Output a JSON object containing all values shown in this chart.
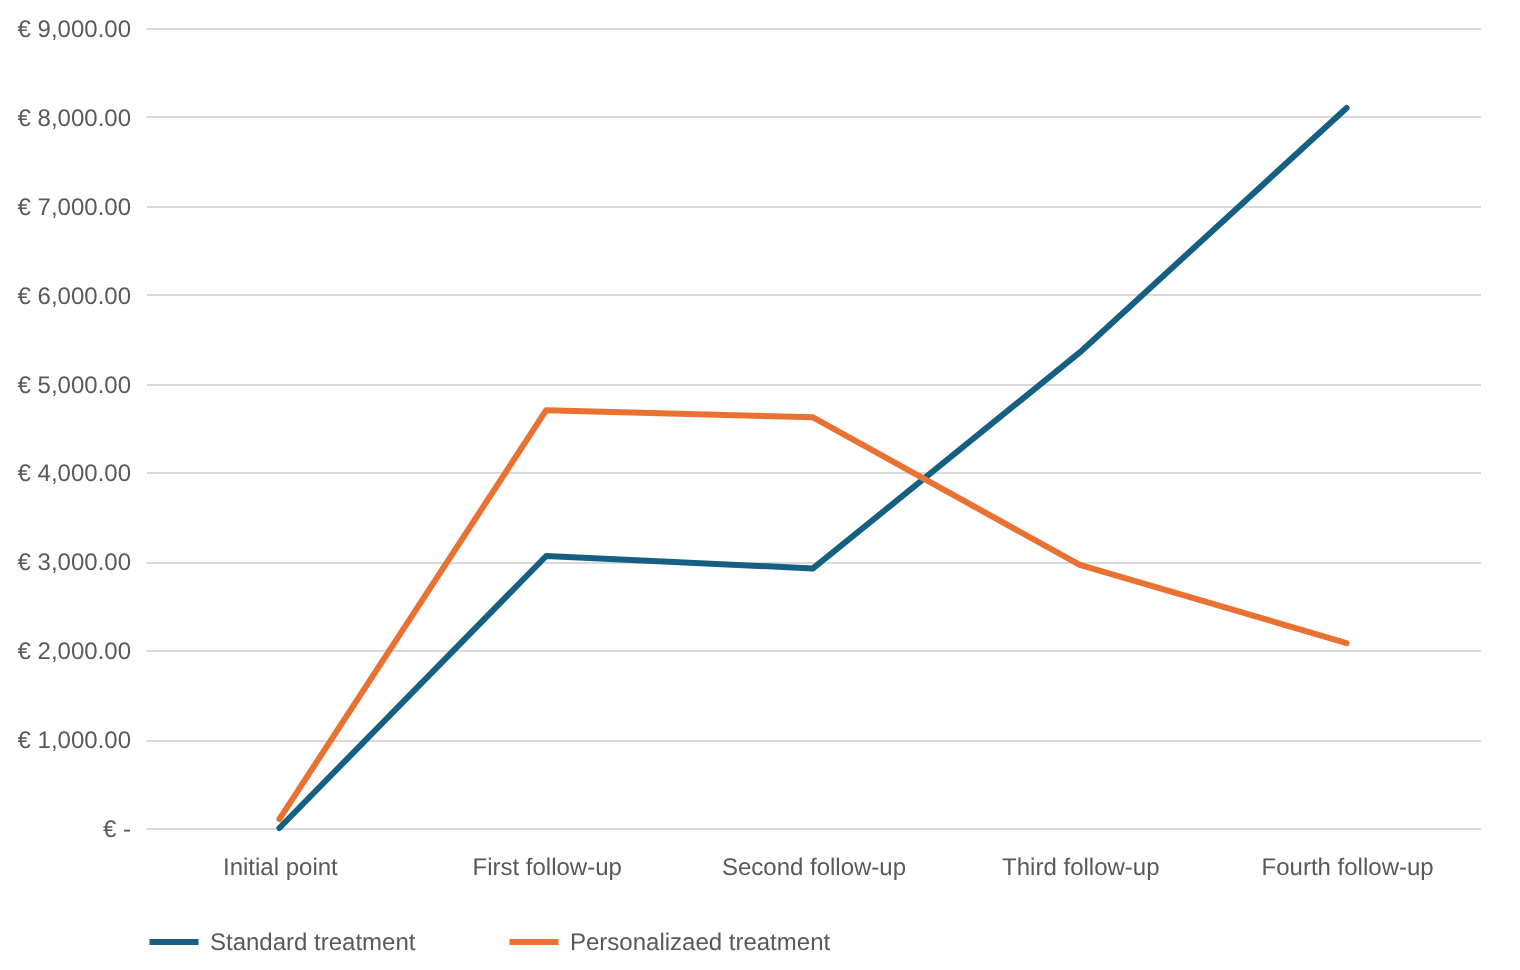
{
  "chart_data": {
    "type": "line",
    "categories": [
      "Initial point",
      "First follow-up",
      "Second follow-up",
      "Third follow-up",
      "Fourth follow-up"
    ],
    "series": [
      {
        "name": "Standard treatment",
        "color": "#156082",
        "values": [
          0,
          3060,
          2920,
          5350,
          8100
        ]
      },
      {
        "name": "Personalizaed treatment",
        "color": "#e97132",
        "values": [
          100,
          4700,
          4620,
          2960,
          2080
        ]
      }
    ],
    "ylim": [
      0,
      9000
    ],
    "yticks": [
      {
        "value": 0,
        "label": "€ -"
      },
      {
        "value": 1000,
        "label": "€ 1,000.00"
      },
      {
        "value": 2000,
        "label": "€ 2,000.00"
      },
      {
        "value": 3000,
        "label": "€ 3,000.00"
      },
      {
        "value": 4000,
        "label": "€ 4,000.00"
      },
      {
        "value": 5000,
        "label": "€ 5,000.00"
      },
      {
        "value": 6000,
        "label": "€ 6,000.00"
      },
      {
        "value": 7000,
        "label": "€ 7,000.00"
      },
      {
        "value": 8000,
        "label": "€ 8,000.00"
      },
      {
        "value": 9000,
        "label": "€ 9,000.00"
      }
    ],
    "grid": "y",
    "legend": "bottom",
    "marker": "none"
  }
}
